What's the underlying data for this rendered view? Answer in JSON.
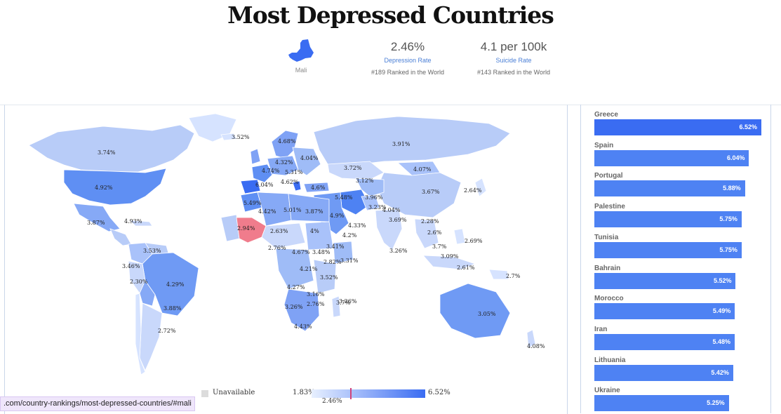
{
  "page_title": "Most Depressed Countries",
  "selected": {
    "country": "Mali",
    "depression_rate": "2.46%",
    "depression_label": "Depression Rate",
    "depression_rank": "#189 Ranked in the World",
    "suicide_rate": "4.1 per 100k",
    "suicide_label": "Suicide Rate",
    "suicide_rank": "#143 Ranked in the World"
  },
  "map": {
    "labels": [
      "3.74%",
      "3.52%",
      "4.68%",
      "3.91%",
      "4.32%",
      "4.04%",
      "4.74%",
      "5.31%",
      "6.04%",
      "4.62%",
      "3.72%",
      "4.07%",
      "4.6%",
      "3.12%",
      "4.92%",
      "5.48%",
      "3.96%",
      "3.67%",
      "2.64%",
      "5.49%",
      "4.42%",
      "5.01%",
      "3.87%",
      "3.23%",
      "4.9%",
      "4.04%",
      "3.69%",
      "3.87%",
      "4.93%",
      "2.94%",
      "2.63%",
      "4.33%",
      "2.28%",
      "4.2%",
      "2.6%",
      "2.76%",
      "4%",
      "3.7%",
      "2.69%",
      "3.53%",
      "4.67%",
      "3.48%",
      "3.41%",
      "3.26%",
      "3.09%",
      "3.46%",
      "2.82%",
      "3.31%",
      "2.61%",
      "2.30%",
      "4.21%",
      "4.29%",
      "3.52%",
      "2.7%",
      "4.27%",
      "3.16%",
      "3.26%",
      "3.05%",
      "3.26%",
      "3.88%",
      "2.76%",
      "3.7%",
      "4.43%",
      "2.72%",
      "4.08%"
    ]
  },
  "legend": {
    "unavailable": "Unavailable",
    "min": "1.83%",
    "max": "6.52%",
    "current": "2.46%"
  },
  "ranking": [
    {
      "name": "Greece",
      "value": "6.52%",
      "rate": 6.52
    },
    {
      "name": "Spain",
      "value": "6.04%",
      "rate": 6.04
    },
    {
      "name": "Portugal",
      "value": "5.88%",
      "rate": 5.88
    },
    {
      "name": "Palestine",
      "value": "5.75%",
      "rate": 5.75
    },
    {
      "name": "Tunisia",
      "value": "5.75%",
      "rate": 5.75
    },
    {
      "name": "Bahrain",
      "value": "5.52%",
      "rate": 5.52
    },
    {
      "name": "Morocco",
      "value": "5.49%",
      "rate": 5.49
    },
    {
      "name": "Iran",
      "value": "5.48%",
      "rate": 5.48
    },
    {
      "name": "Lithuania",
      "value": "5.42%",
      "rate": 5.42
    },
    {
      "name": "Ukraine",
      "value": "5.25%",
      "rate": 5.25
    }
  ],
  "status_url": ".com/country-rankings/most-depressed-countries/#mali",
  "colors": {
    "bar": "#4e82f3",
    "bar_top": "#3a6cf2",
    "highlight": "#f07c8c",
    "map_light": "#d6e3ff",
    "map_mid": "#9fbcf7"
  }
}
